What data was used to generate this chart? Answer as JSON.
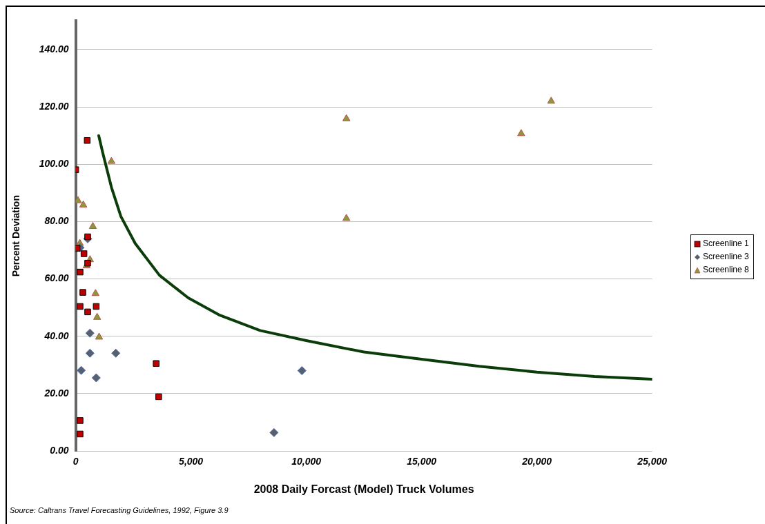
{
  "chart_data": {
    "type": "scatter",
    "xlabel": "2008 Daily Forcast (Model) Truck Volumes",
    "ylabel": "Percent Deviation",
    "annotations": [
      "Source: Caltrans Travel Forecasting Guidelines, 1992, Figure 3.9"
    ],
    "xlim": [
      0,
      25000
    ],
    "xticks": [
      0,
      {
        "value": 5000,
        "label": "5,000"
      },
      {
        "value": 10000,
        "label": "10,000"
      },
      {
        "value": 15000,
        "label": "15,000"
      },
      {
        "value": 20000,
        "label": "20,000"
      },
      {
        "value": 25000,
        "label": "25,000"
      }
    ],
    "ylim": [
      0,
      150
    ],
    "yticks": [
      {
        "value": 0,
        "label": "0.00"
      },
      {
        "value": 20,
        "label": "20.00"
      },
      {
        "value": 40,
        "label": "40.00"
      },
      {
        "value": 60,
        "label": "60.00"
      },
      {
        "value": 80,
        "label": "80.00"
      },
      {
        "value": 100,
        "label": "100.00"
      },
      {
        "value": 120,
        "label": "120.00"
      },
      {
        "value": 140,
        "label": "140.00"
      }
    ],
    "grid": "y",
    "legend": "right",
    "series": [
      {
        "name": "Screenline 1",
        "marker": "square",
        "color": "#c00000",
        "x": [
          0,
          500,
          60,
          520,
          360,
          520,
          190,
          310,
          190,
          890,
          520,
          3490,
          3600,
          190,
          190
        ],
        "values": [
          98.1,
          108.3,
          70.7,
          74.7,
          68.8,
          65.5,
          62.4,
          55.3,
          50.4,
          50.4,
          48.5,
          30.5,
          18.9,
          10.6,
          5.9
        ]
      },
      {
        "name": "Screenline 3",
        "marker": "diamond",
        "color": "#58606f",
        "x": [
          520,
          190,
          620,
          620,
          1740,
          240,
          890,
          8600,
          9810
        ],
        "values": [
          74.0,
          70.9,
          41.1,
          34.1,
          34.1,
          28.1,
          25.5,
          6.4,
          28
        ]
      },
      {
        "name": "Screenline 8",
        "marker": "triangle",
        "color": "#8a9a3a",
        "x": [
          1550,
          100,
          330,
          745,
          180,
          620,
          470,
          860,
          930,
          1015,
          11740,
          11740,
          19320,
          20620
        ],
        "values": [
          101,
          87.3,
          85.8,
          78.3,
          72.4,
          66.7,
          64.6,
          54.9,
          46.6,
          39.7,
          115.9,
          81.1,
          110.7,
          122
        ]
      },
      {
        "type": "line",
        "marker": "none",
        "color": "#0b3d0b",
        "x": [
          1000,
          1180,
          1550,
          1960,
          2580,
          3630,
          4880,
          6210,
          8000,
          10000,
          12500,
          15000,
          17500,
          20000,
          22500,
          25000
        ],
        "values": [
          110,
          103.8,
          92,
          81.8,
          72.4,
          61.3,
          53.4,
          47.5,
          42,
          38.5,
          34.5,
          32,
          29.5,
          27.5,
          26,
          25
        ]
      }
    ]
  }
}
